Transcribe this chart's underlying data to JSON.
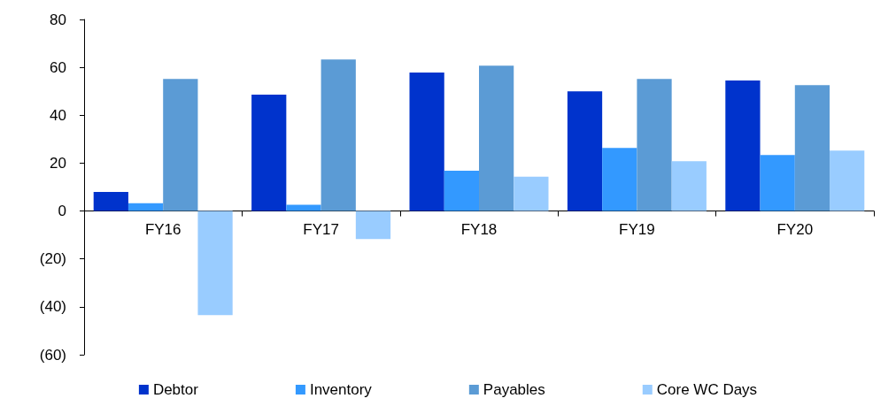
{
  "chart_data": {
    "type": "bar",
    "categories": [
      "FY16",
      "FY17",
      "FY18",
      "FY19",
      "FY20"
    ],
    "series": [
      {
        "name": "Debtor",
        "color": "#0033cc",
        "values": [
          8,
          48.6,
          57.8,
          50,
          54.5
        ]
      },
      {
        "name": "Inventory",
        "color": "#3399ff",
        "values": [
          3.3,
          2.6,
          16.8,
          26.3,
          23.4
        ]
      },
      {
        "name": "Payables",
        "color": "#5b9bd5",
        "values": [
          55.2,
          63.3,
          60.7,
          55.2,
          52.6
        ]
      },
      {
        "name": "Core WC Days",
        "color": "#99ccff",
        "values": [
          -43.5,
          -11.7,
          14.3,
          20.8,
          25.2
        ]
      }
    ],
    "ylim": [
      -60,
      80
    ],
    "yticks": [
      {
        "value": -60,
        "label": "(60)"
      },
      {
        "value": -40,
        "label": "(40)"
      },
      {
        "value": -20,
        "label": "(20)"
      },
      0,
      20,
      40,
      60,
      80
    ],
    "grid": false,
    "legend": "bottom"
  }
}
